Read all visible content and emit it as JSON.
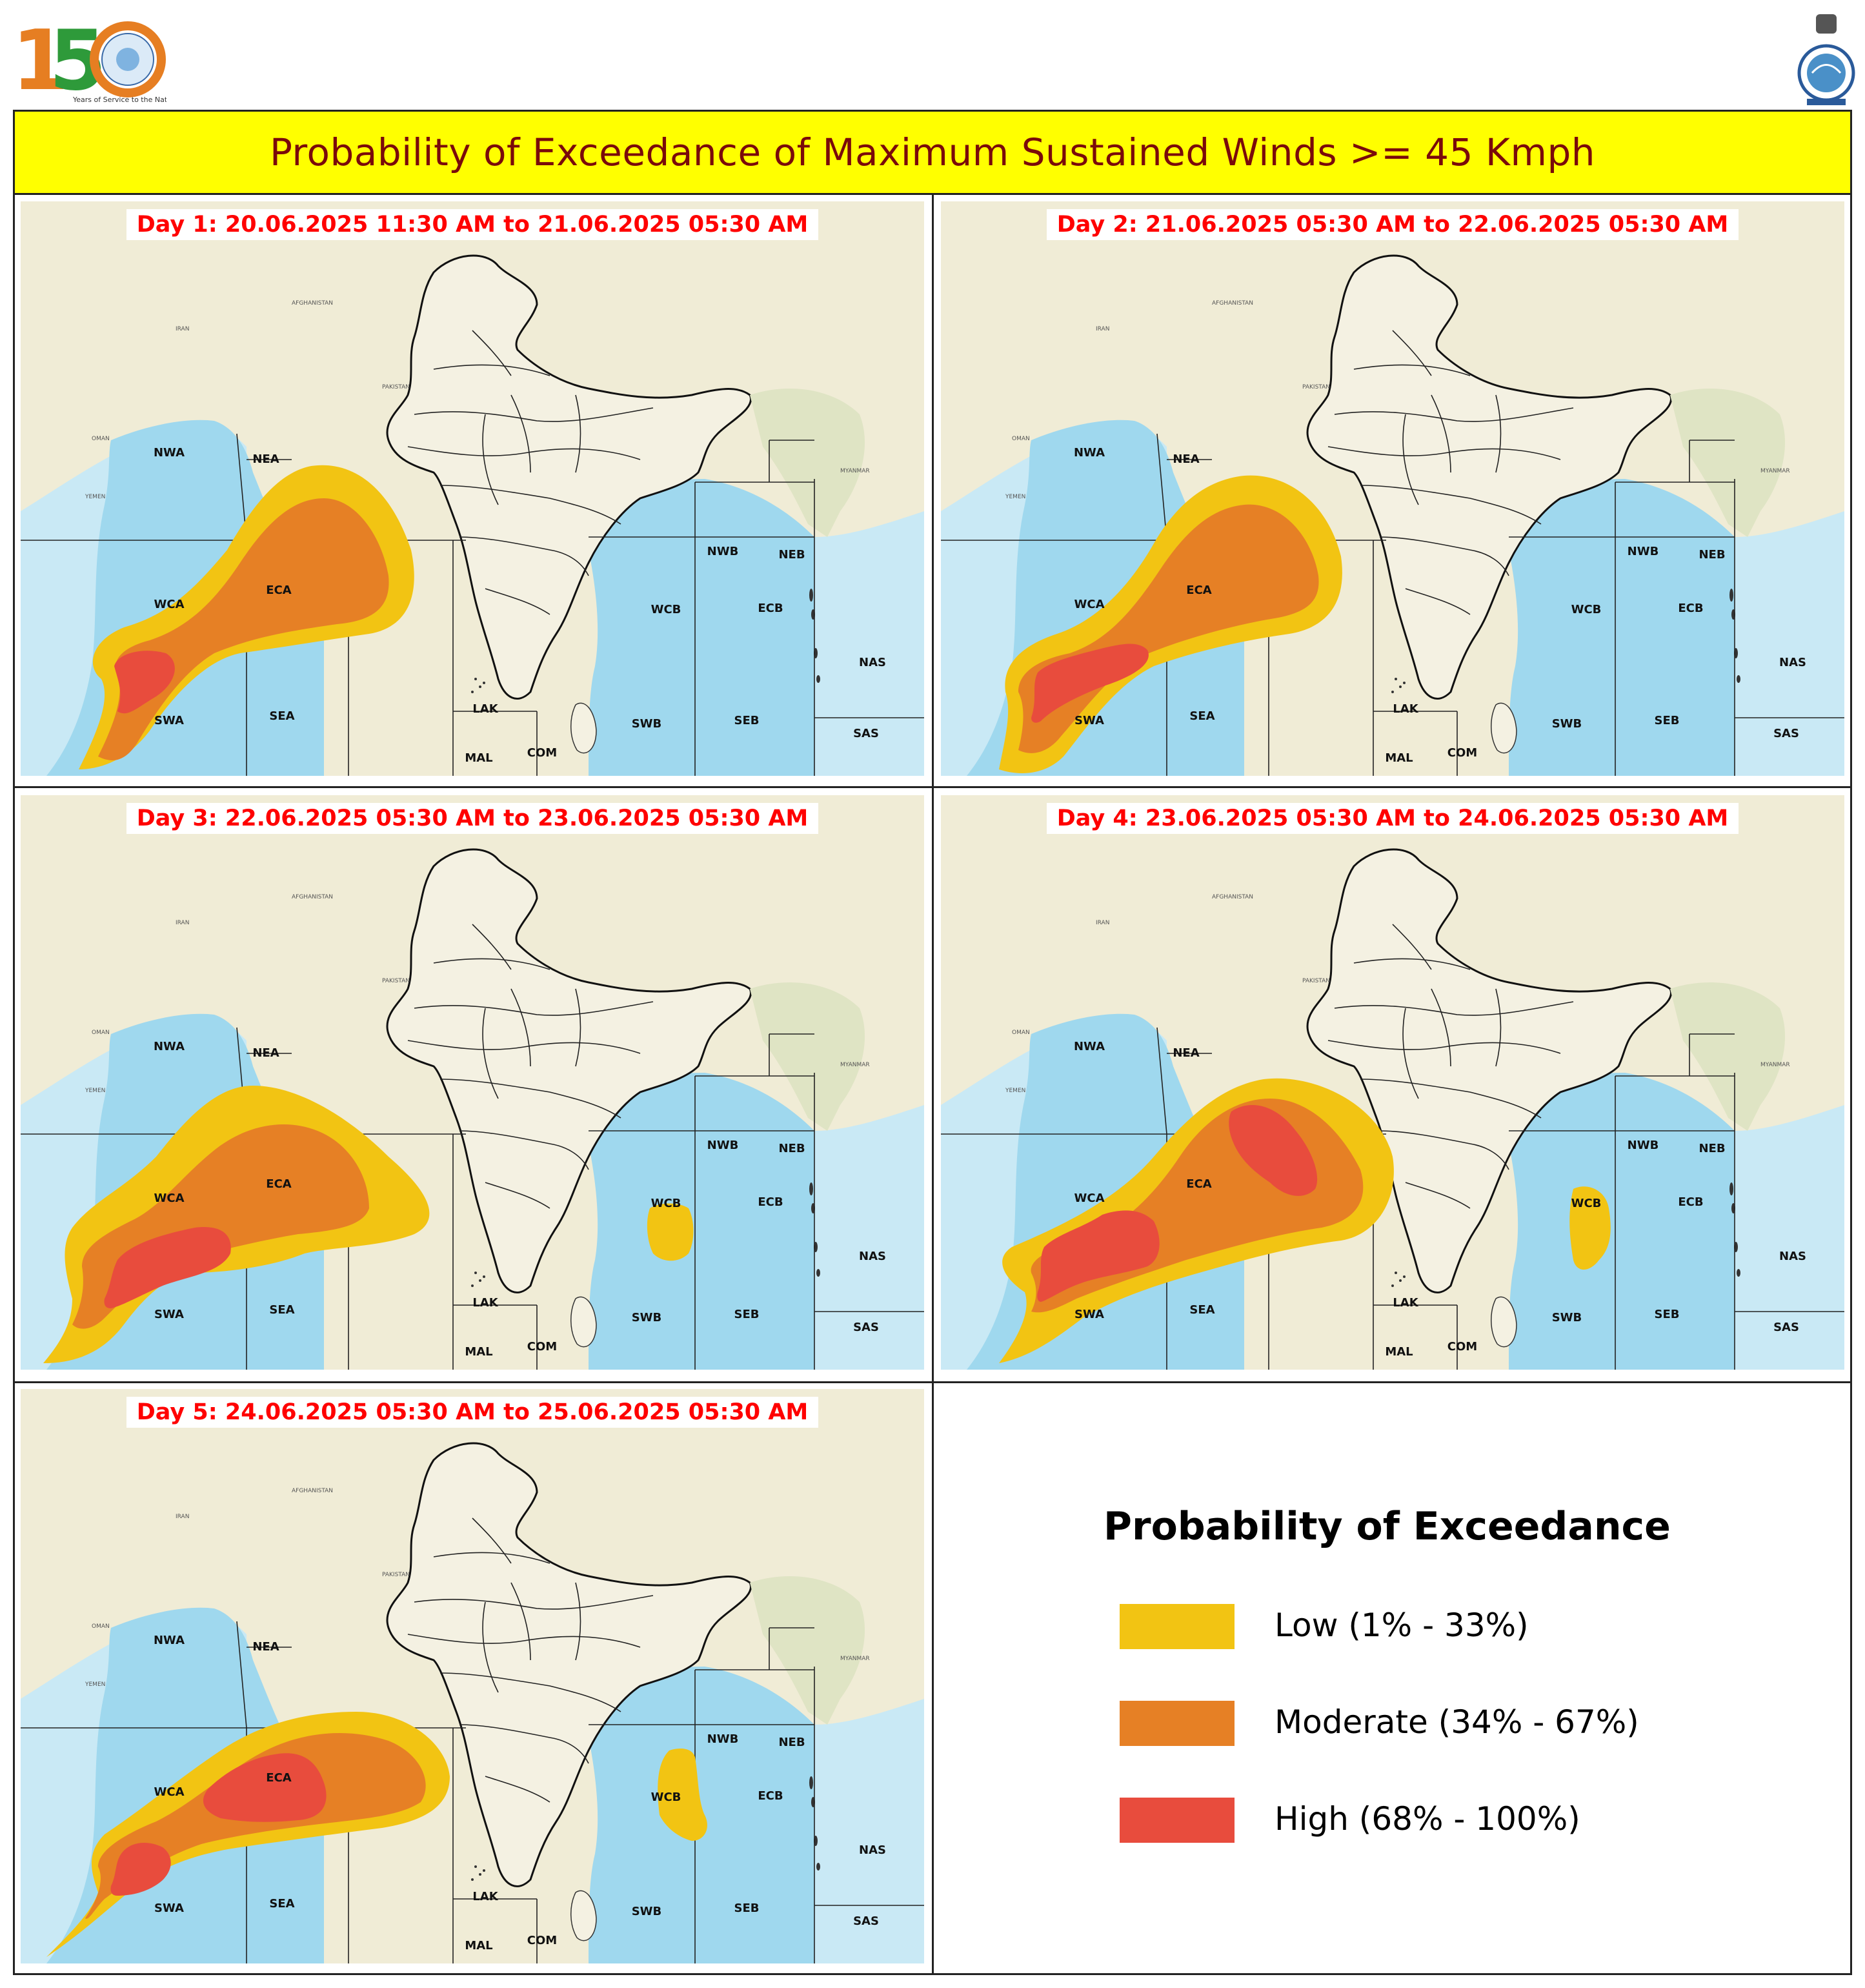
{
  "header": {
    "title": "Probability of Exceedance of Maximum Sustained Winds >= 45 Kmph",
    "logo_text": "150",
    "logo_subtitle": "Years of Service to the Nation"
  },
  "regions": [
    "NWA",
    "NEA",
    "WCA",
    "ECA",
    "SWA",
    "SEA",
    "LAK",
    "MAL",
    "COM",
    "NWB",
    "NEB",
    "WCB",
    "ECB",
    "SWB",
    "SEB",
    "NAS",
    "SAS"
  ],
  "panels": [
    {
      "label": "Day 1: 20.06.2025 11:30 AM to 21.06.2025 05:30 AM"
    },
    {
      "label": "Day 2: 21.06.2025 05:30 AM to 22.06.2025 05:30 AM"
    },
    {
      "label": "Day 3: 22.06.2025 05:30 AM to 23.06.2025 05:30 AM"
    },
    {
      "label": "Day 4: 23.06.2025 05:30 AM to 24.06.2025 05:30 AM"
    },
    {
      "label": "Day 5: 24.06.2025 05:30 AM to 25.06.2025 05:30 AM"
    }
  ],
  "legend": {
    "title": "Probability of Exceedance",
    "items": [
      {
        "label": "Low (1% - 33%)",
        "color": "#f2c413"
      },
      {
        "label": "Moderate (34% - 67%)",
        "color": "#e68025"
      },
      {
        "label": "High (68% - 100%)",
        "color": "#e84c3d"
      }
    ]
  },
  "colors": {
    "land": "#f0ecd6",
    "sea": "#9fd8ee",
    "open_sea": "#c9e9f5",
    "title_bg": "#ffff00",
    "title_text": "#7a0a0a",
    "caption_text": "#ff0000"
  }
}
